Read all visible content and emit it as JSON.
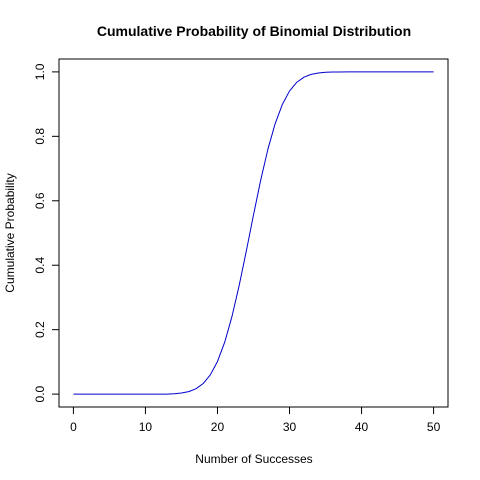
{
  "chart_data": {
    "type": "line",
    "title": "Cumulative Probability of Binomial Distribution",
    "xlabel": "Number of Successes",
    "ylabel": "Cumulative Probability",
    "xlim": [
      0,
      50
    ],
    "ylim": [
      0,
      1
    ],
    "x_ticks": [
      0,
      10,
      20,
      30,
      40,
      50
    ],
    "x_tick_labels": [
      "0",
      "10",
      "20",
      "30",
      "40",
      "50"
    ],
    "y_ticks": [
      0,
      0.2,
      0.4,
      0.6,
      0.8,
      1
    ],
    "y_tick_labels": [
      "0.0",
      "0.2",
      "0.4",
      "0.6",
      "0.8",
      "1.0"
    ],
    "grid": false,
    "line_color": "#0000cc",
    "series": [
      {
        "name": "",
        "x": [
          0,
          1,
          2,
          3,
          4,
          5,
          6,
          7,
          8,
          9,
          10,
          11,
          12,
          13,
          14,
          15,
          16,
          17,
          18,
          19,
          20,
          21,
          22,
          23,
          24,
          25,
          26,
          27,
          28,
          29,
          30,
          31,
          32,
          33,
          34,
          35,
          36,
          37,
          38,
          39,
          40,
          41,
          42,
          43,
          44,
          45,
          46,
          47,
          48,
          49,
          50
        ],
        "values": [
          0,
          0,
          0,
          0,
          0,
          0,
          0,
          0,
          0,
          0,
          0,
          0,
          0,
          0,
          0.0013,
          0.0033,
          0.0077,
          0.0164,
          0.0325,
          0.0595,
          0.1013,
          0.1611,
          0.2399,
          0.3359,
          0.4439,
          0.5561,
          0.6641,
          0.7601,
          0.8389,
          0.8987,
          0.9405,
          0.9675,
          0.9836,
          0.9923,
          0.9967,
          0.9987,
          0.9995,
          0.9998,
          1,
          1,
          1,
          1,
          1,
          1,
          1,
          1,
          1,
          1,
          1,
          1,
          1
        ]
      }
    ]
  }
}
